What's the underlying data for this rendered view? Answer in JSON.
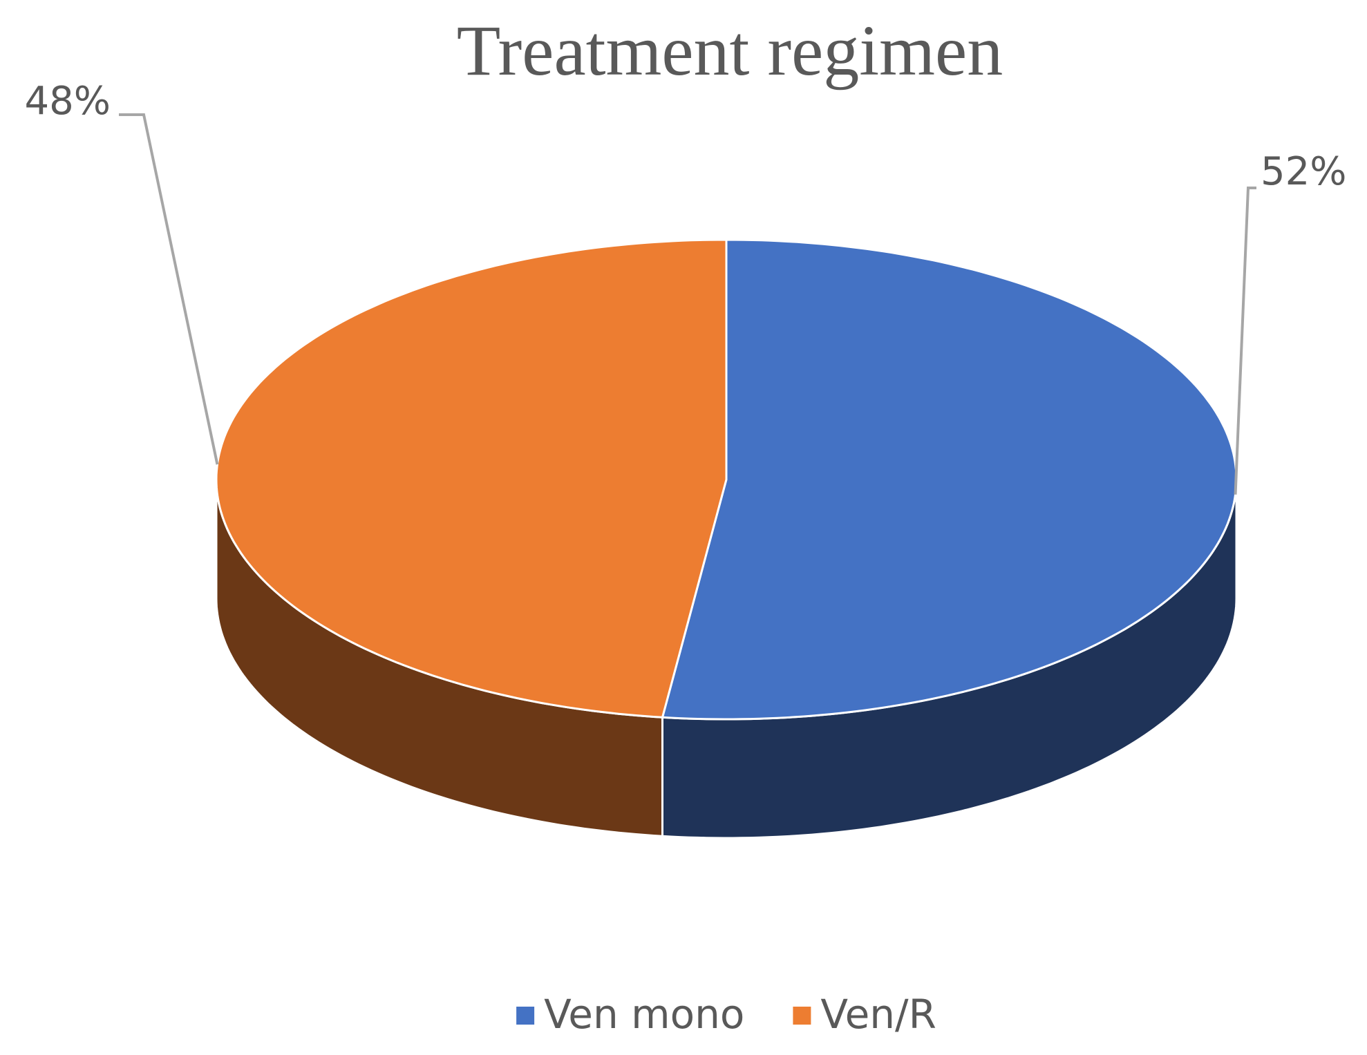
{
  "chart_data": {
    "type": "pie",
    "title": "Treatment regimen",
    "categories": [
      "Ven mono",
      "Ven/R"
    ],
    "values": [
      52,
      48
    ],
    "value_labels": [
      "52%",
      "48%"
    ],
    "colors": [
      "#4472c4",
      "#ed7d31"
    ],
    "legend": "bottom"
  }
}
